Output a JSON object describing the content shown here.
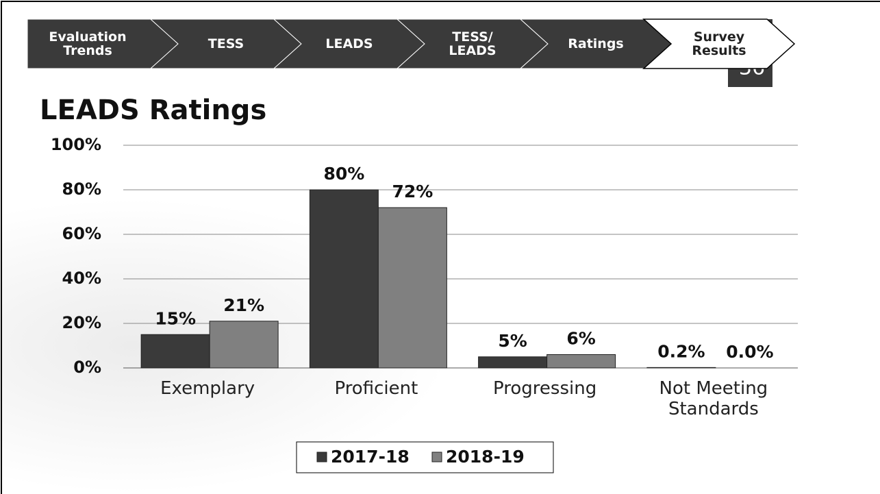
{
  "nav": [
    "Evaluation Trends",
    "TESS",
    "LEADS",
    "TESS/ LEADS",
    "Ratings",
    "Survey Results"
  ],
  "slide_number": 36,
  "chart_data": {
    "type": "bar",
    "title": "LEADS Ratings",
    "categories": [
      "Exemplary",
      "Proficient",
      "Progressing",
      "Not Meeting Standards"
    ],
    "series": [
      {
        "name": "2017-18",
        "color": "#3a3a3a",
        "values": [
          15,
          80,
          5,
          0.2
        ],
        "value_labels": [
          "15%",
          "80%",
          "5%",
          "0.2%"
        ]
      },
      {
        "name": "2018-19",
        "color": "#808080",
        "values": [
          21,
          72,
          6,
          0.0
        ],
        "value_labels": [
          "21%",
          "72%",
          "6%",
          "0.0%"
        ]
      }
    ],
    "ylim": [
      0,
      100
    ],
    "yticks": [
      {
        "value": 0,
        "label": "0%"
      },
      {
        "value": 20,
        "label": "20%"
      },
      {
        "value": 40,
        "label": "40%"
      },
      {
        "value": 60,
        "label": "60%"
      },
      {
        "value": 80,
        "label": "80%"
      },
      {
        "value": 100,
        "label": "100%"
      }
    ],
    "grid": true,
    "legend": "bottom"
  }
}
